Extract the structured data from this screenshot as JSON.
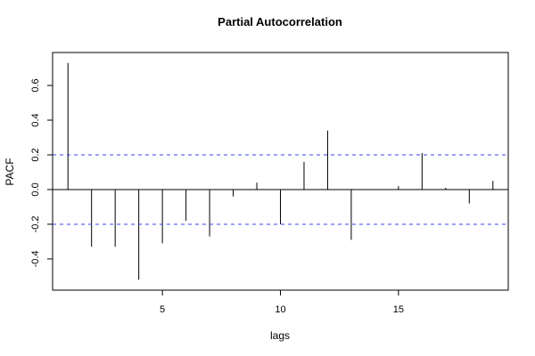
{
  "chart_data": {
    "type": "bar",
    "title": "Partial Autocorrelation",
    "xlabel": "lags",
    "ylabel": "PACF",
    "x": [
      1,
      2,
      3,
      4,
      5,
      6,
      7,
      8,
      9,
      10,
      11,
      12,
      13,
      14,
      15,
      16,
      17,
      18,
      19
    ],
    "values": [
      0.73,
      -0.33,
      -0.33,
      -0.52,
      -0.31,
      -0.18,
      -0.27,
      -0.04,
      0.04,
      -0.2,
      0.16,
      0.34,
      -0.29,
      0.0,
      0.02,
      0.21,
      0.01,
      -0.08,
      0.05
    ],
    "confidence_bounds": [
      0.2,
      -0.2
    ],
    "xlim": [
      0.35,
      19.65
    ],
    "ylim": [
      -0.58,
      0.79
    ],
    "xticks": [
      5,
      10,
      15
    ],
    "xtick_labels": [
      "5",
      "10",
      "15"
    ],
    "yticks": [
      -0.4,
      -0.2,
      0.0,
      0.2,
      0.4,
      0.6
    ],
    "ytick_labels": [
      "-0.4",
      "-0.2",
      "0.0",
      "0.2",
      "0.4",
      "0.6"
    ],
    "grid": false,
    "colors": {
      "bar": "#000000",
      "bound": "#3344ee",
      "zero_line": "#000000"
    }
  }
}
